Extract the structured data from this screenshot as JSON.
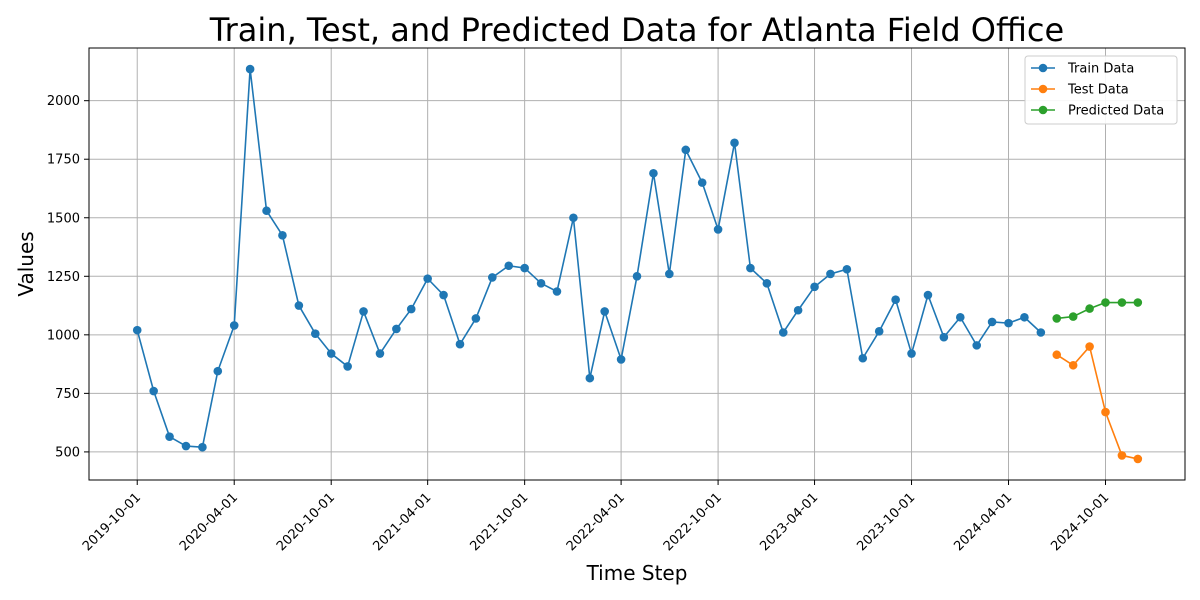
{
  "chart_data": {
    "type": "line",
    "title": "Train, Test, and Predicted Data for Atlanta Field Office",
    "xlabel": "Time Step",
    "ylabel": "Values",
    "x_tick_labels": [
      "2019-10-01",
      "2020-04-01",
      "2020-10-01",
      "2021-04-01",
      "2021-10-01",
      "2022-04-01",
      "2022-10-01",
      "2023-04-01",
      "2023-10-01",
      "2024-04-01",
      "2024-10-01"
    ],
    "y_ticks": [
      500,
      750,
      1000,
      1250,
      1500,
      1750,
      2000
    ],
    "ylim": [
      380,
      2225
    ],
    "xlim": [
      "2019-07-02",
      "2025-02-28"
    ],
    "grid": true,
    "legend_position": "top-right",
    "series": [
      {
        "name": "Train Data",
        "color": "#1f77b4",
        "x": [
          "2019-10-01",
          "2019-11-01",
          "2019-12-01",
          "2020-01-01",
          "2020-02-01",
          "2020-03-01",
          "2020-04-01",
          "2020-05-01",
          "2020-06-01",
          "2020-07-01",
          "2020-08-01",
          "2020-09-01",
          "2020-10-01",
          "2020-11-01",
          "2020-12-01",
          "2021-01-01",
          "2021-02-01",
          "2021-03-01",
          "2021-04-01",
          "2021-05-01",
          "2021-06-01",
          "2021-07-01",
          "2021-08-01",
          "2021-09-01",
          "2021-10-01",
          "2021-11-01",
          "2021-12-01",
          "2022-01-01",
          "2022-02-01",
          "2022-03-01",
          "2022-04-01",
          "2022-05-01",
          "2022-06-01",
          "2022-07-01",
          "2022-08-01",
          "2022-09-01",
          "2022-10-01",
          "2022-11-01",
          "2022-12-01",
          "2023-01-01",
          "2023-02-01",
          "2023-03-01",
          "2023-04-01",
          "2023-05-01",
          "2023-06-01",
          "2023-07-01",
          "2023-08-01",
          "2023-09-01",
          "2023-10-01",
          "2023-11-01",
          "2023-12-01",
          "2024-01-01",
          "2024-02-01",
          "2024-03-01",
          "2024-04-01",
          "2024-05-01",
          "2024-06-01"
        ],
        "values": [
          1020,
          760,
          565,
          525,
          520,
          845,
          1040,
          2135,
          1530,
          1425,
          1125,
          1005,
          920,
          865,
          1100,
          920,
          1025,
          1110,
          1240,
          1170,
          960,
          1070,
          1245,
          1295,
          1285,
          1220,
          1185,
          1500,
          815,
          1100,
          895,
          1250,
          1690,
          1260,
          1790,
          1650,
          1450,
          1820,
          1285,
          1220,
          1010,
          1105,
          1205,
          1260,
          1280,
          900,
          1015,
          1150,
          920,
          1170,
          990,
          1075,
          955,
          1055,
          1050,
          1075,
          1010
        ]
      },
      {
        "name": "Test Data",
        "color": "#ff7f0e",
        "x": [
          "2024-07-01",
          "2024-08-01",
          "2024-09-01",
          "2024-10-01",
          "2024-11-01",
          "2024-12-01"
        ],
        "values": [
          915,
          870,
          950,
          670,
          485,
          470
        ]
      },
      {
        "name": "Predicted Data",
        "color": "#2ca02c",
        "x": [
          "2024-07-01",
          "2024-08-01",
          "2024-09-01",
          "2024-10-01",
          "2024-11-01",
          "2024-12-01"
        ],
        "values": [
          1070,
          1078,
          1112,
          1138,
          1138,
          1138
        ]
      }
    ]
  }
}
